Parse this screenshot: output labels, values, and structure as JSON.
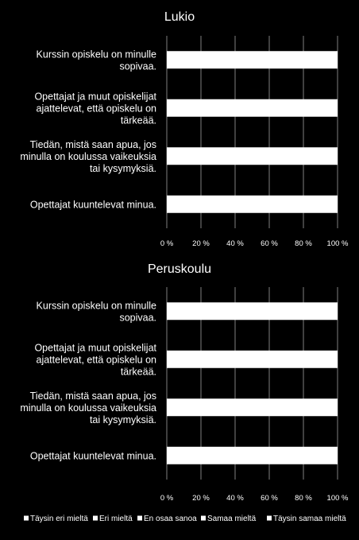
{
  "chart_data": [
    {
      "type": "bar",
      "orientation": "horizontal",
      "stacked": true,
      "percent_stacked": true,
      "title": "Lukio",
      "categories": [
        [
          "Kurssin opiskelu on minulle",
          "sopivaa."
        ],
        [
          "Opettajat ja muut opiskelijat",
          "ajattelevat, että opiskelu on",
          "tärkeää."
        ],
        [
          "Tiedän, mistä saan apua, jos",
          "minulla on koulussa vaikeuksia",
          "tai kysymyksiä."
        ],
        [
          "Opettajat kuuntelevat minua."
        ]
      ],
      "series": [
        {
          "name": "Täysin eri mieltä",
          "values": [
            0,
            0,
            0,
            0
          ]
        },
        {
          "name": "Eri mieltä",
          "values": [
            0,
            0,
            0,
            0
          ]
        },
        {
          "name": "En osaa sanoa",
          "values": [
            0,
            0,
            0,
            0
          ]
        },
        {
          "name": "Samaa mieltä",
          "values": [
            0,
            0,
            0,
            0
          ]
        },
        {
          "name": "Täysin samaa mieltä",
          "values": [
            100,
            100,
            100,
            100
          ]
        }
      ],
      "x_ticks": [
        "0 %",
        "20 %",
        "40 %",
        "60 %",
        "80 %",
        "100 %"
      ],
      "xlim": [
        0,
        100
      ],
      "grid": true
    },
    {
      "type": "bar",
      "orientation": "horizontal",
      "stacked": true,
      "percent_stacked": true,
      "title": "Peruskoulu",
      "categories": [
        [
          "Kurssin opiskelu on minulle",
          "sopivaa."
        ],
        [
          "Opettajat ja muut opiskelijat",
          "ajattelevat, että opiskelu on",
          "tärkeää."
        ],
        [
          "Tiedän, mistä saan apua, jos",
          "minulla on koulussa vaikeuksia",
          "tai kysymyksiä."
        ],
        [
          "Opettajat kuuntelevat minua."
        ]
      ],
      "series": [
        {
          "name": "Täysin eri mieltä",
          "values": [
            0,
            0,
            0,
            0
          ]
        },
        {
          "name": "Eri mieltä",
          "values": [
            0,
            0,
            0,
            0
          ]
        },
        {
          "name": "En osaa sanoa",
          "values": [
            0,
            0,
            0,
            0
          ]
        },
        {
          "name": "Samaa mieltä",
          "values": [
            0,
            0,
            0,
            0
          ]
        },
        {
          "name": "Täysin samaa mieltä",
          "values": [
            100,
            100,
            100,
            100
          ]
        }
      ],
      "x_ticks": [
        "0 %",
        "20 %",
        "40 %",
        "60 %",
        "80 %",
        "100 %"
      ],
      "xlim": [
        0,
        100
      ],
      "grid": true
    }
  ],
  "legend": {
    "position": "bottom",
    "entries": [
      "Täysin eri mieltä",
      "Eri mieltä",
      "En osaa sanoa",
      "Samaa mieltä",
      "Täysin samaa mieltä"
    ]
  },
  "colors": {
    "background": "#000000",
    "bar": "#ffffff",
    "gridline": "#7f7f7f",
    "text": "#ffffff"
  }
}
